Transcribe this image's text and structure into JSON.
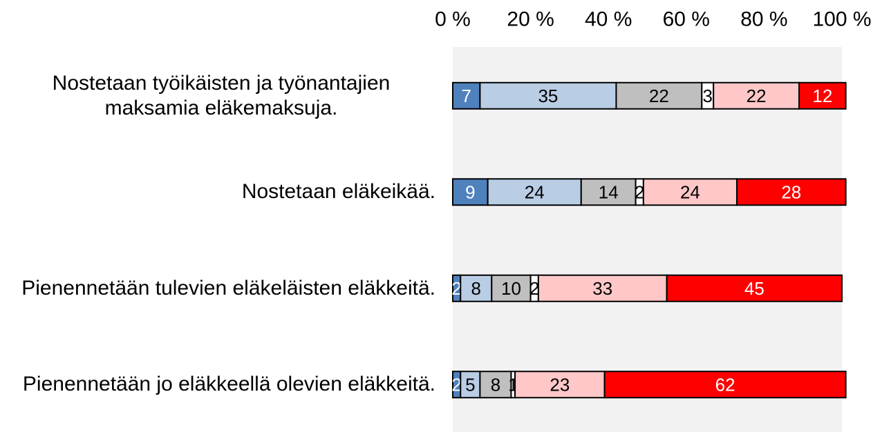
{
  "chart_data": {
    "type": "stacked-bar-horizontal",
    "categories": [
      "Nostetaan työikäisten ja työnantajien maksamia eläkemaksuja.",
      "Nostetaan eläkeikää.",
      "Pienennetään tulevien eläkeläisten eläkkeitä.",
      "Pienennetään jo eläkkeellä olevien eläkkeitä."
    ],
    "series": [
      {
        "color": "#4f81bd",
        "values": [
          7,
          9,
          2,
          2
        ]
      },
      {
        "color": "#b9cde5",
        "values": [
          35,
          24,
          8,
          5
        ]
      },
      {
        "color": "#bfbfbf",
        "values": [
          22,
          14,
          10,
          8
        ]
      },
      {
        "color": "#ffffff",
        "values": [
          3,
          2,
          2,
          1
        ]
      },
      {
        "color": "#ffc7c7",
        "values": [
          22,
          24,
          33,
          23
        ]
      },
      {
        "color": "#ff0000",
        "values": [
          12,
          28,
          45,
          62
        ]
      }
    ],
    "xlim": [
      0,
      100
    ],
    "xticks": [
      {
        "value": 0,
        "label": "0 %"
      },
      {
        "value": 20,
        "label": "20 %"
      },
      {
        "value": 40,
        "label": "40 %"
      },
      {
        "value": 60,
        "label": "60 %"
      },
      {
        "value": 80,
        "label": "80 %"
      },
      {
        "value": 100,
        "label": "100 %"
      }
    ]
  }
}
